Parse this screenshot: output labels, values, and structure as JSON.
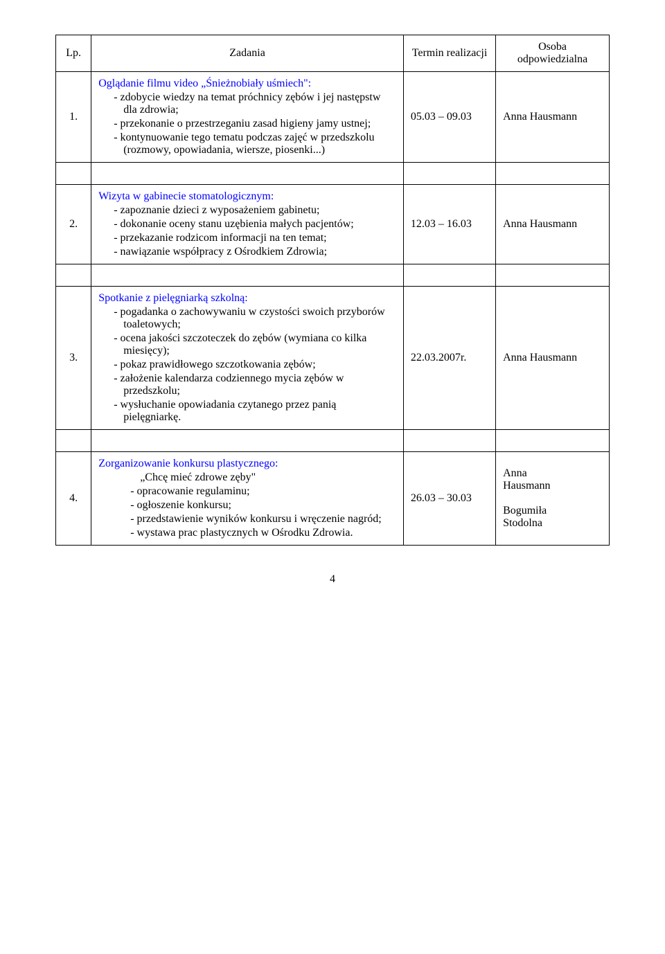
{
  "header": {
    "lp": "Lp.",
    "zadania": "Zadania",
    "termin": "Termin realizacji",
    "osoba": "Osoba odpowiedzialna"
  },
  "rows": [
    {
      "lp": "1.",
      "title": "Oglądanie filmu video „Śnieżnobiały uśmiech\":",
      "items": [
        "-  zdobycie wiedzy na temat próchnicy zębów i jej następstw dla zdrowia;",
        "-  przekonanie o przestrzeganiu zasad higieny jamy ustnej;",
        "-  kontynuowanie tego tematu podczas zajęć w przedszkolu (rozmowy, opowiadania, wiersze, piosenki...)"
      ],
      "termin": "05.03 – 09.03",
      "osoba": "Anna Hausmann"
    },
    {
      "lp": "2.",
      "title": "Wizyta w gabinecie stomatologicznym:",
      "items": [
        "-  zapoznanie dzieci z wyposażeniem gabinetu;",
        "-  dokonanie oceny stanu uzębienia małych pacjentów;",
        "-  przekazanie rodzicom informacji na ten temat;",
        "-  nawiązanie współpracy z Ośrodkiem Zdrowia;"
      ],
      "termin": "12.03 – 16.03",
      "osoba": "Anna Hausmann"
    },
    {
      "lp": "3.",
      "title": "Spotkanie z pielęgniarką szkolną:",
      "items": [
        "-  pogadanka o zachowywaniu w czystości swoich przyborów toaletowych;",
        "-  ocena jakości szczoteczek do zębów (wymiana co kilka miesięcy);",
        "-  pokaz prawidłowego szczotkowania zębów;",
        "-  założenie kalendarza codziennego mycia zębów w przedszkolu;",
        "-  wysłuchanie opowiadania czytanego przez panią pielęgniarkę."
      ],
      "termin": "22.03.2007r.",
      "osoba": "Anna Hausmann"
    },
    {
      "lp": "4.",
      "title": "Zorganizowanie konkursu plastycznego:",
      "quote": "„Chcę mieć zdrowe zęby\"",
      "items": [
        "-  opracowanie regulaminu;",
        "-  ogłoszenie konkursu;",
        "-  przedstawienie wyników konkursu i wręczenie nagród;",
        "-  wystawa prac plastycznych w Ośrodku Zdrowia."
      ],
      "termin": "26.03 – 30.03",
      "osoba_lines": [
        "Anna",
        "Hausmann",
        "",
        "Bogumiła",
        "Stodolna"
      ]
    }
  ],
  "page_number": "4",
  "colors": {
    "title_color": "#0000ff",
    "text_color": "#000000",
    "border_color": "#000000",
    "background": "#ffffff"
  }
}
